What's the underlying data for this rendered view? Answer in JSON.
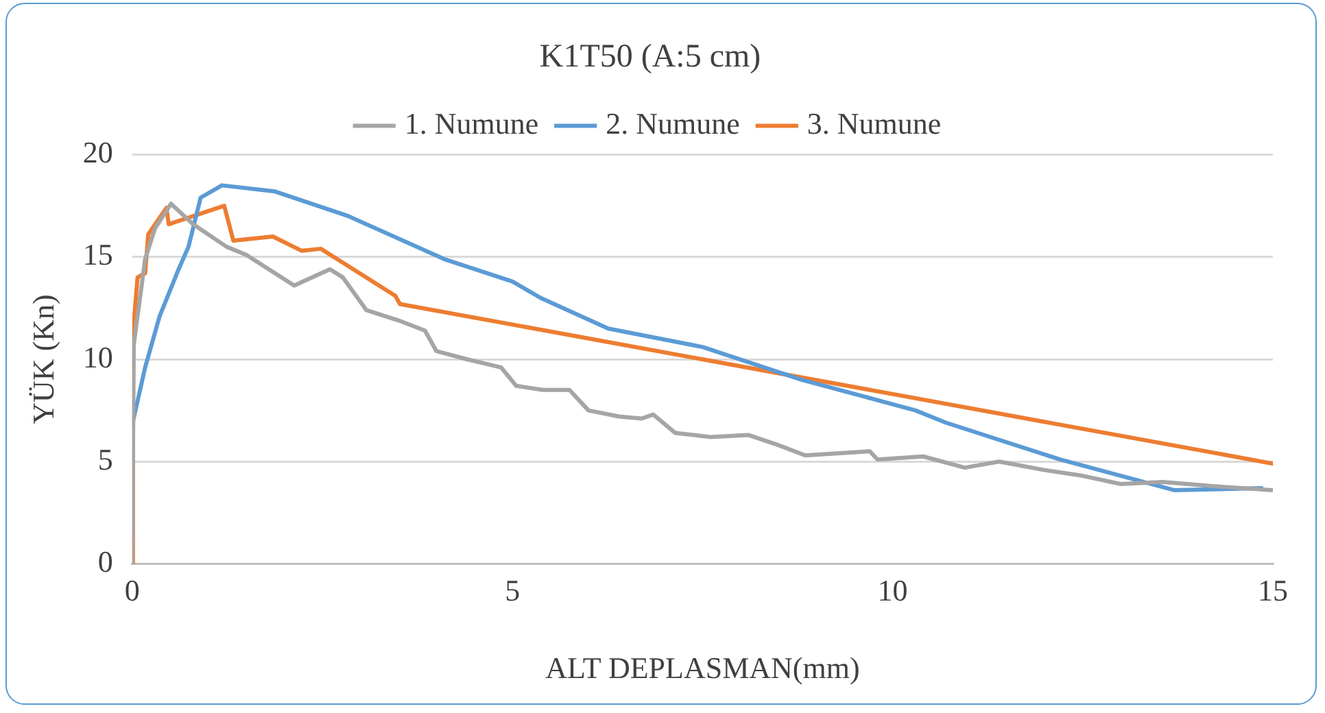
{
  "chart_data": {
    "type": "line",
    "title": "K1T50 (A:5 cm)",
    "xlabel": "ALT DEPLASMAN(mm)",
    "ylabel": "YÜK (Kn)",
    "xlim": [
      0,
      15
    ],
    "xticks": [
      0,
      5,
      10,
      15
    ],
    "ylim": [
      0,
      20
    ],
    "yticks": [
      0,
      5,
      10,
      15,
      20
    ],
    "grid": "y",
    "legend": "top",
    "marker": "none",
    "line_style": "solid",
    "series": [
      {
        "name": "1. Numune",
        "color": "#a5a5a5",
        "x": [
          0,
          0.02,
          0.17,
          0.3,
          0.51,
          0.8,
          1.24,
          1.5,
          2.13,
          2.6,
          2.77,
          3.08,
          3.5,
          3.85,
          4.0,
          4.4,
          4.85,
          5.05,
          5.4,
          5.75,
          6.0,
          6.4,
          6.7,
          6.85,
          7.14,
          7.6,
          8.1,
          8.5,
          8.85,
          9.7,
          9.8,
          10.4,
          10.95,
          11.4,
          11.97,
          12.5,
          13.0,
          13.55,
          14.2,
          15
        ],
        "values": [
          0,
          10.7,
          14.9,
          16.4,
          17.6,
          16.6,
          15.5,
          15.1,
          13.6,
          14.4,
          14.0,
          12.4,
          11.9,
          11.4,
          10.4,
          10.0,
          9.6,
          8.7,
          8.5,
          8.5,
          7.5,
          7.2,
          7.1,
          7.3,
          6.4,
          6.2,
          6.3,
          5.8,
          5.3,
          5.5,
          5.1,
          5.25,
          4.7,
          5.0,
          4.6,
          4.3,
          3.9,
          4.0,
          3.8,
          3.6
        ]
      },
      {
        "name": "2. Numune",
        "color": "#5b9bd5",
        "x": [
          0,
          0.17,
          0.36,
          0.61,
          0.74,
          0.9,
          1.18,
          1.88,
          2.84,
          4.1,
          5.0,
          5.37,
          6.26,
          7.5,
          8.8,
          10.3,
          10.7,
          12.2,
          13.7,
          14.85
        ],
        "values": [
          6.8,
          9.6,
          12.1,
          14.4,
          15.5,
          17.9,
          18.5,
          18.2,
          17.0,
          14.9,
          13.8,
          13.0,
          11.5,
          10.6,
          9.0,
          7.5,
          6.9,
          5.1,
          3.6,
          3.7
        ]
      },
      {
        "name": "3. Numune",
        "color": "#ed7d31",
        "x": [
          0,
          0.01,
          0.07,
          0.17,
          0.21,
          0.45,
          0.48,
          1.21,
          1.33,
          1.85,
          2.23,
          2.48,
          3.46,
          3.52,
          15
        ],
        "values": [
          0,
          11.3,
          14.0,
          14.2,
          16.1,
          17.4,
          16.6,
          17.5,
          15.8,
          16.0,
          15.3,
          15.4,
          13.1,
          12.7,
          4.9
        ]
      }
    ]
  }
}
